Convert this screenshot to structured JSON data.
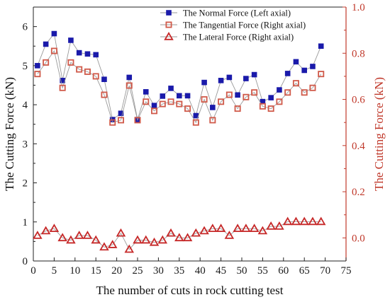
{
  "chart_data": {
    "type": "line",
    "xlabel": "The number of cuts in rock cutting test",
    "ylabel_left": "The Cutting Force (kN)",
    "ylabel_right": "The Cutting Force (kN)",
    "xlim": [
      0,
      75
    ],
    "x_ticks": [
      0,
      5,
      10,
      15,
      20,
      25,
      30,
      35,
      40,
      45,
      50,
      55,
      60,
      65,
      70,
      75
    ],
    "ylim_left": [
      0,
      6.5
    ],
    "y_ticks_left": [
      0,
      1,
      2,
      3,
      4,
      5,
      6
    ],
    "ylim_right": [
      -0.1,
      1.0
    ],
    "y_ticks_right": [
      0.0,
      0.2,
      0.4,
      0.6,
      0.8,
      1.0
    ],
    "grid": false,
    "legend_position": "top-right",
    "colors": {
      "normal": "#1a1aaa",
      "tangential": "#d05a4a",
      "lateral": "#c62828",
      "axis_right": "#c0392b",
      "line": "#9a9a9a"
    },
    "series": [
      {
        "name": "The Normal Force (Left axial)",
        "axis": "left",
        "marker": "filled-square",
        "x": [
          1,
          3,
          5,
          7,
          9,
          11,
          13,
          15,
          17,
          19,
          21,
          23,
          25,
          27,
          29,
          31,
          33,
          35,
          37,
          39,
          41,
          43,
          45,
          47,
          49,
          51,
          53,
          55,
          57,
          59,
          61,
          63,
          65,
          67,
          69
        ],
        "y": [
          5.0,
          5.55,
          5.82,
          4.62,
          5.65,
          5.33,
          5.3,
          5.28,
          4.65,
          3.62,
          3.78,
          4.7,
          3.62,
          4.33,
          3.98,
          4.22,
          4.42,
          4.23,
          4.23,
          3.72,
          4.57,
          3.93,
          4.62,
          4.7,
          4.25,
          4.67,
          4.77,
          4.08,
          4.18,
          4.38,
          4.8,
          5.1,
          4.88,
          4.98,
          5.5
        ]
      },
      {
        "name": "The Tangential Force (Right axial)",
        "axis": "right",
        "marker": "open-square",
        "x": [
          1,
          3,
          5,
          7,
          9,
          11,
          13,
          15,
          17,
          19,
          21,
          23,
          25,
          27,
          29,
          31,
          33,
          35,
          37,
          39,
          41,
          43,
          45,
          47,
          49,
          51,
          53,
          55,
          57,
          59,
          61,
          63,
          65,
          67,
          69
        ],
        "y": [
          0.71,
          0.76,
          0.81,
          0.65,
          0.76,
          0.73,
          0.72,
          0.7,
          0.62,
          0.5,
          0.51,
          0.66,
          0.51,
          0.59,
          0.55,
          0.58,
          0.59,
          0.58,
          0.56,
          0.5,
          0.6,
          0.51,
          0.59,
          0.62,
          0.56,
          0.61,
          0.63,
          0.57,
          0.56,
          0.59,
          0.63,
          0.67,
          0.63,
          0.65,
          0.71
        ]
      },
      {
        "name": "The Lateral Force (Right axial)",
        "axis": "right",
        "marker": "open-triangle",
        "x": [
          1,
          3,
          5,
          7,
          9,
          11,
          13,
          15,
          17,
          19,
          21,
          23,
          25,
          27,
          29,
          31,
          33,
          35,
          37,
          39,
          41,
          43,
          45,
          47,
          49,
          51,
          53,
          55,
          57,
          59,
          61,
          63,
          65,
          67,
          69
        ],
        "y": [
          0.01,
          0.03,
          0.04,
          0.0,
          -0.01,
          0.01,
          0.01,
          -0.01,
          -0.04,
          -0.03,
          0.02,
          -0.05,
          -0.01,
          -0.01,
          -0.02,
          -0.01,
          0.02,
          0.0,
          0.0,
          0.02,
          0.03,
          0.04,
          0.04,
          0.01,
          0.04,
          0.04,
          0.04,
          0.03,
          0.05,
          0.05,
          0.07,
          0.07,
          0.07,
          0.07,
          0.07
        ]
      }
    ]
  }
}
